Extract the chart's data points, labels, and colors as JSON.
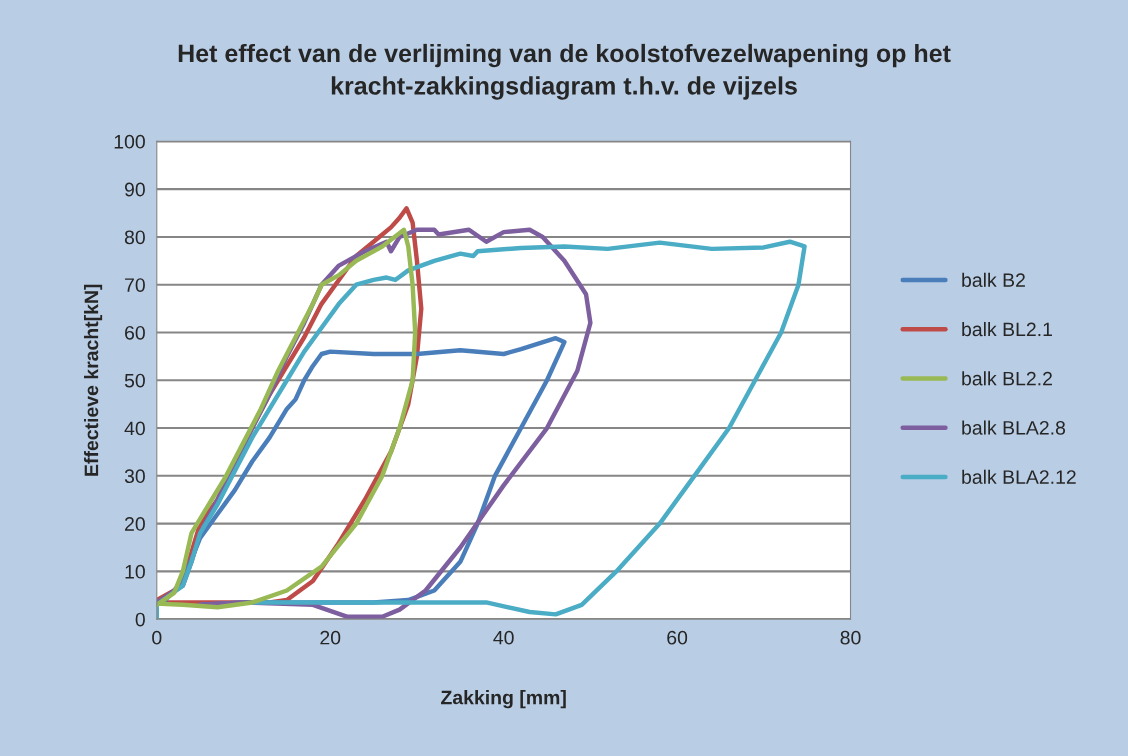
{
  "chart_data": {
    "type": "line",
    "title": "Het effect van de verlijming van de koolstofvezelwapening op het kracht-zakkingsdiagram t.h.v. de vijzels",
    "xlabel": "Zakking [mm]",
    "ylabel": "Effectieve kracht[kN]",
    "xlim": [
      0,
      80
    ],
    "xticks": [
      0,
      20,
      40,
      60,
      80
    ],
    "ylim": [
      0,
      100
    ],
    "yticks": [
      0,
      10,
      20,
      30,
      40,
      50,
      60,
      70,
      80,
      90,
      100
    ],
    "grid": "y",
    "legend": "right",
    "marker": "none",
    "line_style": "solid",
    "series": [
      {
        "name": "balk B2",
        "color": "#4a7ebb",
        "x": [
          0,
          1,
          3,
          5,
          7,
          9,
          11,
          13,
          15,
          16,
          17,
          18,
          19,
          20,
          25,
          30,
          35,
          40,
          42,
          46,
          47,
          45,
          42,
          39,
          37,
          35,
          32,
          29,
          25,
          20,
          10,
          5
        ],
        "values": [
          3,
          4,
          8,
          17,
          22,
          27,
          33,
          38,
          44,
          46,
          50,
          53,
          55.5,
          56,
          55.5,
          55.5,
          56.3,
          55.5,
          56.5,
          58.8,
          58,
          50,
          40,
          30,
          20,
          12,
          6,
          4,
          3.5,
          3.5,
          3.5,
          3
        ]
      },
      {
        "name": "balk BL2.1",
        "color": "#be4b48",
        "x": [
          0,
          2,
          3,
          4,
          5,
          7,
          9,
          11,
          13,
          15,
          17,
          19,
          21,
          23,
          25,
          27,
          28,
          28.8,
          29.5,
          30,
          30.5,
          30,
          29,
          27,
          24,
          21,
          18,
          15,
          13,
          5,
          0
        ],
        "values": [
          4,
          6,
          8,
          14,
          20,
          25,
          33,
          40,
          47,
          53,
          59,
          66,
          71,
          76,
          79,
          82,
          84,
          86,
          83,
          75,
          65,
          55,
          45,
          35,
          25,
          16,
          8,
          4,
          3.5,
          3.5,
          3.5
        ]
      },
      {
        "name": "balk BL2.2",
        "color": "#98b954",
        "x": [
          0,
          2,
          3,
          4,
          6,
          8,
          10,
          12,
          14,
          16,
          18,
          19,
          21,
          23,
          26,
          28.5,
          29,
          29.5,
          29.8,
          29.5,
          28,
          26,
          23,
          19,
          15,
          11,
          7,
          3,
          0.5
        ],
        "values": [
          3,
          5.5,
          10,
          18,
          24,
          30,
          37,
          44,
          52,
          59,
          66,
          70,
          72,
          75,
          78,
          81.5,
          78,
          70,
          60,
          50,
          40,
          30,
          20,
          11,
          6,
          3.5,
          2.5,
          3,
          3.2
        ]
      },
      {
        "name": "balk BLA2.8",
        "color": "#7d5fa0",
        "x": [
          0,
          3,
          4,
          5,
          7,
          9,
          11,
          13,
          15,
          17,
          19,
          21,
          24,
          26.5,
          27,
          28,
          30,
          32,
          32.5,
          36,
          38,
          40,
          43,
          44.5,
          47,
          49.5,
          50,
          48.5,
          45,
          40,
          35,
          31,
          28,
          26,
          22,
          18,
          10,
          5
        ],
        "values": [
          3.5,
          7,
          12,
          18,
          25,
          32,
          40,
          47,
          55,
          62,
          70,
          74,
          77,
          79,
          77,
          80,
          81.5,
          81.5,
          80.5,
          81.5,
          79,
          81,
          81.5,
          80,
          75,
          68,
          62,
          52,
          40,
          28,
          15,
          6,
          2,
          0.5,
          0.5,
          3,
          3.5,
          3
        ]
      },
      {
        "name": "balk BLA2.12",
        "color": "#4bacc6",
        "x": [
          0,
          0,
          3,
          4,
          5,
          7,
          9,
          11,
          13,
          15,
          17,
          19,
          21,
          23,
          25,
          26.5,
          27.5,
          29,
          32,
          35,
          36.5,
          37,
          42,
          47,
          52,
          58,
          64,
          70,
          73,
          74.7,
          74,
          72,
          69,
          66,
          62,
          58,
          53,
          49,
          46,
          43,
          38,
          30,
          20,
          11
        ],
        "values": [
          0,
          3,
          7,
          12,
          18,
          24,
          31,
          38,
          44,
          50,
          56,
          61,
          66,
          70,
          71,
          71.5,
          71,
          73,
          75,
          76.5,
          76,
          77,
          77.7,
          78,
          77.5,
          78.8,
          77.5,
          77.8,
          79,
          78,
          70,
          60,
          50,
          40,
          30,
          20,
          10,
          3,
          1,
          1.5,
          3.5,
          3.5,
          3.5,
          3.5
        ]
      }
    ]
  }
}
